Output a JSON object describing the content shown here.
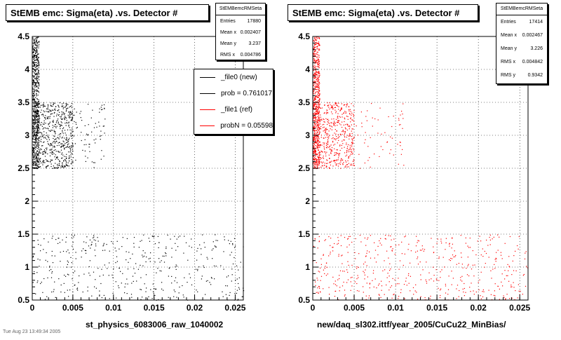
{
  "chart_data": [
    {
      "type": "scatter",
      "title": "StEMB emc: Sigma(eta) .vs. Detector #",
      "xlabel": "st_physics_6083006_raw_1040002",
      "xlim": [
        0,
        0.026
      ],
      "ylim": [
        0.5,
        4.5
      ],
      "x_ticks": [
        "0",
        "0.005",
        "0.01",
        "0.015",
        "0.02",
        "0.025"
      ],
      "y_ticks": [
        "0.5",
        "1",
        "1.5",
        "2",
        "2.5",
        "3",
        "3.5",
        "4",
        "4.5"
      ],
      "grid": true,
      "marker_color": "#000000",
      "stats": {
        "name": "StEMBemcRMSeta",
        "rows": [
          {
            "label": "Entries",
            "value": "17880"
          },
          {
            "label": "Mean x",
            "value": "0.002407"
          },
          {
            "label": "Mean y",
            "value": "3.237"
          },
          {
            "label": "RMS x",
            "value": "0.004786"
          }
        ]
      },
      "legend": {
        "placement": "top-right",
        "entries": [
          {
            "label": "_file0 (new)",
            "color": "#000000"
          },
          {
            "label": "prob = 0.761017",
            "color": "#000000"
          },
          {
            "label": "_file1 (ref)",
            "color": "#ff0000"
          },
          {
            "label": "probN = 0.05598",
            "color": "#ff0000"
          }
        ]
      },
      "regions": [
        {
          "x": [
            0.0,
            0.0008
          ],
          "y": [
            2.5,
            4.5
          ],
          "count": 600
        },
        {
          "x": [
            0.0,
            0.005
          ],
          "y": [
            2.5,
            3.5
          ],
          "count": 650
        },
        {
          "x": [
            0.005,
            0.009
          ],
          "y": [
            2.5,
            3.5
          ],
          "count": 70
        },
        {
          "x": [
            0.0,
            0.026
          ],
          "y": [
            0.5,
            1.5
          ],
          "count": 420
        }
      ]
    },
    {
      "type": "scatter",
      "title": "StEMB emc: Sigma(eta) .vs. Detector #",
      "xlabel": "new/daq_sl302.ittf/year_2005/CuCu22_MinBias/",
      "xlim": [
        0,
        0.026
      ],
      "ylim": [
        0.5,
        4.5
      ],
      "x_ticks": [
        "0",
        "0.005",
        "0.01",
        "0.015",
        "0.02",
        "0.025"
      ],
      "y_ticks": [
        "0.5",
        "1",
        "1.5",
        "2",
        "2.5",
        "3",
        "3.5",
        "4",
        "4.5"
      ],
      "grid": true,
      "marker_color": "#ff0000",
      "stats": {
        "name": "StEMBemcRMSeta",
        "rows": [
          {
            "label": "Entries",
            "value": "17414"
          },
          {
            "label": "Mean x",
            "value": "0.002467"
          },
          {
            "label": "Mean y",
            "value": "3.226"
          },
          {
            "label": "RMS x",
            "value": "0.004842"
          },
          {
            "label": "RMS y",
            "value": "0.9342"
          }
        ]
      },
      "regions": [
        {
          "x": [
            0.0,
            0.0008
          ],
          "y": [
            2.5,
            4.5
          ],
          "count": 600
        },
        {
          "x": [
            0.0,
            0.005
          ],
          "y": [
            2.5,
            3.5
          ],
          "count": 550
        },
        {
          "x": [
            0.005,
            0.011
          ],
          "y": [
            2.5,
            3.5
          ],
          "count": 60
        },
        {
          "x": [
            0.0,
            0.026
          ],
          "y": [
            0.5,
            1.5
          ],
          "count": 500
        }
      ]
    }
  ],
  "footer": "Tue Aug 23 13:49:34 2005"
}
